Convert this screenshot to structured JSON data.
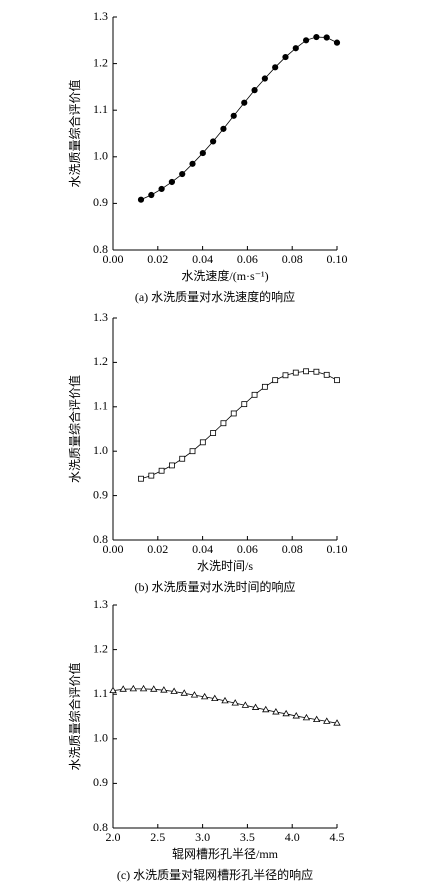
{
  "chart_data": [
    {
      "type": "line",
      "marker": "circle-filled",
      "color": "#000000",
      "caption": "(a) 水洗质量对水洗速度的响应",
      "xlabel": "水洗速度/(m·s⁻¹)",
      "ylabel": "水洗质量综合评价值",
      "x": [
        0.0125,
        0.0171,
        0.0217,
        0.0263,
        0.0309,
        0.0355,
        0.0401,
        0.0447,
        0.0493,
        0.0539,
        0.0586,
        0.0632,
        0.0678,
        0.0724,
        0.077,
        0.0816,
        0.0862,
        0.0908,
        0.0954,
        0.1
      ],
      "values": [
        0.908,
        0.918,
        0.931,
        0.946,
        0.963,
        0.985,
        1.008,
        1.033,
        1.06,
        1.088,
        1.116,
        1.143,
        1.168,
        1.192,
        1.214,
        1.233,
        1.25,
        1.257,
        1.256,
        1.245
      ],
      "xlim": [
        0,
        0.1
      ],
      "xticks": [
        {
          "value": 0,
          "label": "0.00"
        },
        0.02,
        0.04,
        0.06,
        0.08,
        {
          "value": 0.1,
          "label": "0.10"
        }
      ],
      "ylim": [
        0.8,
        1.3
      ],
      "yticks": [
        0.8,
        0.9,
        {
          "value": 1,
          "label": "1.0"
        },
        1.1,
        1.2,
        1.3
      ]
    },
    {
      "type": "line",
      "marker": "square-open",
      "color": "#000000",
      "caption": "(b) 水洗质量对水洗时间的响应",
      "xlabel": "水洗时间/s",
      "ylabel": "水洗质量综合评价值",
      "x": [
        0.0125,
        0.0171,
        0.0217,
        0.0263,
        0.0309,
        0.0355,
        0.0401,
        0.0447,
        0.0493,
        0.0539,
        0.0586,
        0.0632,
        0.0678,
        0.0724,
        0.077,
        0.0816,
        0.0862,
        0.0908,
        0.0954,
        0.1
      ],
      "values": [
        0.938,
        0.945,
        0.956,
        0.968,
        0.983,
        1.0,
        1.02,
        1.041,
        1.063,
        1.085,
        1.106,
        1.127,
        1.145,
        1.16,
        1.171,
        1.177,
        1.18,
        1.179,
        1.172,
        1.16
      ],
      "xlim": [
        0,
        0.1
      ],
      "xticks": [
        {
          "value": 0,
          "label": "0.00"
        },
        0.02,
        0.04,
        0.06,
        0.08,
        {
          "value": 0.1,
          "label": "0.10"
        }
      ],
      "ylim": [
        0.8,
        1.3
      ],
      "yticks": [
        0.8,
        0.9,
        {
          "value": 1,
          "label": "1.0"
        },
        1.1,
        1.2,
        1.3
      ]
    },
    {
      "type": "line",
      "marker": "triangle-open",
      "color": "#000000",
      "caption": "(c) 水洗质量对辊网槽形孔半径的响应",
      "xlabel": "辊网槽形孔半径/mm",
      "ylabel": "水洗质量综合评价值",
      "x": [
        2.0,
        2.114,
        2.227,
        2.341,
        2.455,
        2.568,
        2.682,
        2.795,
        2.909,
        3.023,
        3.136,
        3.25,
        3.364,
        3.477,
        3.591,
        3.705,
        3.818,
        3.932,
        4.045,
        4.159,
        4.273,
        4.386,
        4.5
      ],
      "values": [
        1.108,
        1.111,
        1.112,
        1.112,
        1.111,
        1.109,
        1.106,
        1.102,
        1.098,
        1.094,
        1.09,
        1.085,
        1.08,
        1.075,
        1.07,
        1.065,
        1.06,
        1.056,
        1.051,
        1.047,
        1.043,
        1.039,
        1.035
      ],
      "xlim": [
        2,
        4.5
      ],
      "xticks": [
        {
          "value": 2,
          "label": "2.0"
        },
        2.5,
        {
          "value": 3,
          "label": "3.0"
        },
        3.5,
        {
          "value": 4,
          "label": "4.0"
        },
        4.5
      ],
      "ylim": [
        0.8,
        1.3
      ],
      "yticks": [
        0.8,
        0.9,
        {
          "value": 1,
          "label": "1.0"
        },
        1.1,
        1.2,
        1.3
      ]
    }
  ]
}
